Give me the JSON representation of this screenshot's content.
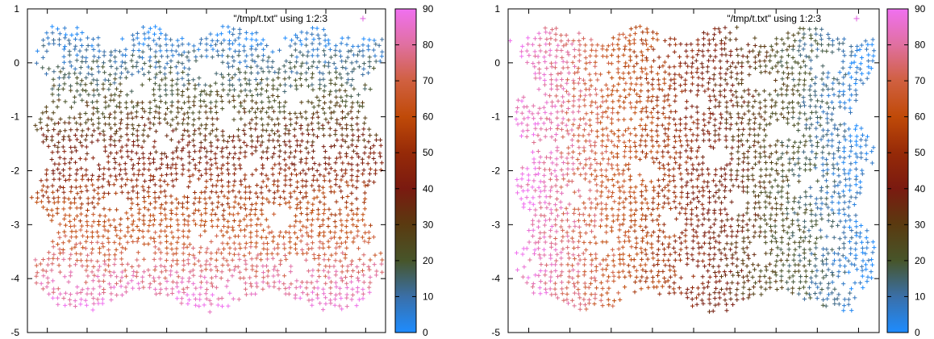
{
  "chart_data": [
    {
      "type": "scatter",
      "legend": {
        "label": "\"/tmp/t.txt\" using 1:2:3",
        "marker": "+",
        "marker_color": "#e060e0",
        "placement": "top-right"
      },
      "ylim": [
        -5,
        1
      ],
      "y_ticks": [
        "1",
        "0",
        "-1",
        "-2",
        "-3",
        "-4",
        "-5"
      ],
      "x_ticks_labeled": false,
      "colorbar": {
        "min": 0,
        "max": 90,
        "ticks": [
          "90",
          "80",
          "70",
          "60",
          "50",
          "40",
          "30",
          "20",
          "10",
          "0"
        ]
      },
      "color_gradient_direction": "vertical",
      "color_gradient_description": "pink (90) at bottom, orange/brown mid, dark olive, blue (0) at top"
    },
    {
      "type": "scatter",
      "legend": {
        "label": "\"/tmp/t.txt\" using 1:2:3",
        "marker": "+",
        "marker_color": "#e060e0",
        "placement": "top-right"
      },
      "ylim": [
        -5,
        1
      ],
      "y_ticks": [
        "1",
        "0",
        "-1",
        "-2",
        "-3",
        "-4",
        "-5"
      ],
      "x_ticks_labeled": false,
      "colorbar": {
        "min": 0,
        "max": 90,
        "ticks": [
          "90",
          "80",
          "70",
          "60",
          "50",
          "40",
          "30",
          "20",
          "10",
          "0"
        ]
      },
      "color_gradient_direction": "horizontal",
      "color_gradient_description": "pink (90) at left, red/brown mid, blue (0) at right"
    }
  ],
  "colormap": [
    "#1e8cff",
    "#3a6fa8",
    "#47552a",
    "#5a3a10",
    "#7a1a10",
    "#962a08",
    "#c04a08",
    "#d06040",
    "#e070a0",
    "#f070f0"
  ]
}
